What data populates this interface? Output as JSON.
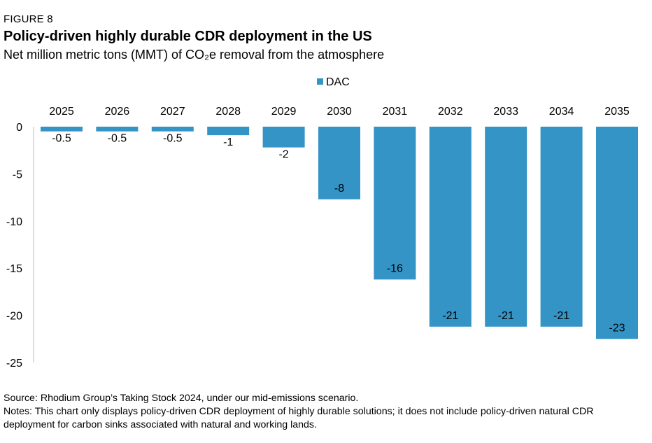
{
  "header": {
    "figure_label": "FIGURE 8",
    "title": "Policy-driven highly durable CDR deployment in the US",
    "subtitle": "Net million metric tons (MMT) of CO₂e removal from the atmosphere"
  },
  "chart_data": {
    "type": "bar",
    "title": "Policy-driven highly durable CDR deployment in the US",
    "subtitle": "Net million metric tons (MMT) of CO₂e removal from the atmosphere",
    "xlabel": "",
    "ylabel": "",
    "categories": [
      "2025",
      "2026",
      "2027",
      "2028",
      "2029",
      "2030",
      "2031",
      "2032",
      "2033",
      "2034",
      "2035"
    ],
    "series": [
      {
        "name": "DAC",
        "color": "#3494c6",
        "values": [
          -0.5,
          -0.5,
          -0.5,
          -0.9,
          -2.2,
          -7.7,
          -16.2,
          -21.2,
          -21.2,
          -21.2,
          -22.5
        ],
        "labels": [
          "-0.5",
          "-0.5",
          "-0.5",
          "-1",
          "-2",
          "-8",
          "-16",
          "-21",
          "-21",
          "-21",
          "-23"
        ]
      }
    ],
    "ylim": [
      -25,
      0
    ],
    "yticks": [
      0,
      -5,
      -10,
      -15,
      -20,
      -25
    ],
    "x_tick_position": "top",
    "legend_position": "top-center",
    "grid": false
  },
  "footer": {
    "source": "Source: Rhodium Group’s Taking Stock 2024, under our mid-emissions scenario.",
    "notes": "Notes: This chart only displays policy-driven CDR deployment of highly durable solutions; it does not include policy-driven natural CDR deployment for carbon sinks associated with natural and working lands."
  }
}
